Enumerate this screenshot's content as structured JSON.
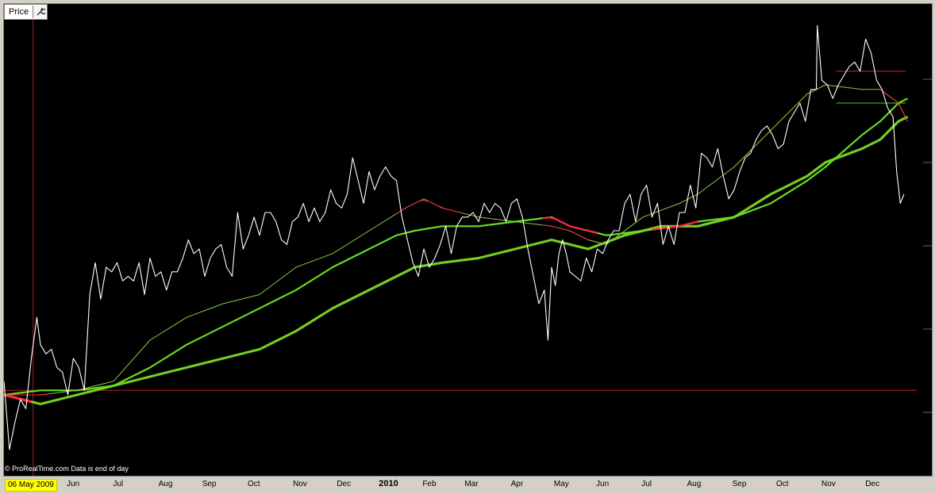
{
  "window": {
    "tab_label": "Price",
    "settings_icon": "wrench-icon"
  },
  "credit": "© ProRealTime.com  Data is end of day",
  "cursor_date": "06 May 2009",
  "colors": {
    "background": "#000000",
    "price": "#ffffff",
    "ma_up": "#66dd22",
    "ma_down": "#ff2244",
    "ref_line": "#aa2222",
    "panel": "#d4d0c8"
  },
  "chart_data": {
    "type": "line",
    "title": "",
    "xlabel": "",
    "ylabel": "",
    "y_labels_visible": false,
    "ylim": [
      0,
      100
    ],
    "grid": false,
    "x_tick_labels": [
      "Jun",
      "Jul",
      "Aug",
      "Sep",
      "Oct",
      "Nov",
      "Dec",
      "2010",
      "Feb",
      "Mar",
      "Apr",
      "May",
      "Jun",
      "Jul",
      "Aug",
      "Sep",
      "Oct",
      "Nov",
      "Dec"
    ],
    "x_tick_bold": [
      false,
      false,
      false,
      false,
      false,
      false,
      false,
      true,
      false,
      false,
      false,
      false,
      false,
      false,
      false,
      false,
      false,
      false,
      false
    ],
    "x_tick_pos": [
      0.0757,
      0.1264,
      0.1762,
      0.2241,
      0.2739,
      0.3236,
      0.3716,
      0.4176,
      0.4655,
      0.5116,
      0.5623,
      0.6094,
      0.6557,
      0.7054,
      0.7552,
      0.8049,
      0.8529,
      0.9026,
      0.9506
    ],
    "series": [
      {
        "role": "price",
        "x": [
          0.0,
          0.006,
          0.012,
          0.018,
          0.024,
          0.03,
          0.036,
          0.04,
          0.046,
          0.052,
          0.058,
          0.064,
          0.07,
          0.076,
          0.082,
          0.088,
          0.094,
          0.1,
          0.106,
          0.112,
          0.118,
          0.124,
          0.13,
          0.136,
          0.142,
          0.148,
          0.154,
          0.16,
          0.166,
          0.172,
          0.178,
          0.184,
          0.19,
          0.196,
          0.202,
          0.208,
          0.214,
          0.22,
          0.226,
          0.232,
          0.238,
          0.244,
          0.25,
          0.256,
          0.262,
          0.268,
          0.274,
          0.28,
          0.286,
          0.292,
          0.298,
          0.304,
          0.31,
          0.316,
          0.322,
          0.328,
          0.334,
          0.34,
          0.346,
          0.352,
          0.358,
          0.364,
          0.37,
          0.376,
          0.382,
          0.388,
          0.394,
          0.4,
          0.406,
          0.412,
          0.418,
          0.424,
          0.43,
          0.436,
          0.442,
          0.448,
          0.454,
          0.46,
          0.466,
          0.472,
          0.478,
          0.484,
          0.49,
          0.496,
          0.502,
          0.508,
          0.514,
          0.52,
          0.526,
          0.532,
          0.538,
          0.544,
          0.55,
          0.556,
          0.562,
          0.568,
          0.574,
          0.58,
          0.586,
          0.592,
          0.596,
          0.6,
          0.604,
          0.608,
          0.612,
          0.616,
          0.62,
          0.626,
          0.632,
          0.638,
          0.644,
          0.65,
          0.656,
          0.662,
          0.668,
          0.674,
          0.68,
          0.686,
          0.692,
          0.698,
          0.704,
          0.71,
          0.716,
          0.722,
          0.728,
          0.734,
          0.74,
          0.746,
          0.752,
          0.758,
          0.764,
          0.77,
          0.776,
          0.782,
          0.788,
          0.794,
          0.8,
          0.806,
          0.812,
          0.818,
          0.824,
          0.83,
          0.836,
          0.842,
          0.848,
          0.854,
          0.86,
          0.866,
          0.872,
          0.878,
          0.884,
          0.89,
          0.896,
          0.902,
          0.908,
          0.914,
          0.92,
          0.926,
          0.932,
          0.938,
          0.944,
          0.95,
          0.956,
          0.962,
          0.968,
          0.974,
          0.978,
          0.982,
          0.986
        ],
        "y": [
          19,
          4,
          10,
          15,
          13,
          24,
          33,
          27,
          25,
          26,
          22,
          21,
          16,
          24,
          22,
          17,
          38,
          45,
          37,
          44,
          43,
          45,
          41,
          42,
          41,
          45,
          38,
          46,
          42,
          43,
          39,
          43,
          43,
          46,
          50,
          47,
          48,
          42,
          46,
          48,
          49,
          44,
          42,
          56,
          48,
          51,
          55,
          51,
          56,
          56,
          54,
          50,
          49,
          54,
          55,
          58,
          54,
          57,
          54,
          56,
          61,
          58,
          57,
          60,
          68,
          63,
          58,
          65,
          61,
          64,
          66,
          64,
          63,
          55,
          50,
          45,
          42,
          48,
          44,
          46,
          49,
          53,
          47,
          53,
          55,
          55,
          56,
          54,
          58,
          56,
          58,
          57,
          54,
          58,
          59,
          55,
          48,
          42,
          36,
          39,
          28,
          44,
          40,
          47,
          50,
          47,
          43,
          42,
          41,
          46,
          43,
          48,
          47,
          50,
          52,
          52,
          58,
          60,
          54,
          60,
          62,
          55,
          58,
          49,
          53,
          49,
          56,
          56,
          62,
          57,
          69,
          68,
          66,
          70,
          64,
          59,
          61,
          65,
          68,
          69,
          72,
          74,
          75,
          73,
          70,
          71,
          76,
          78,
          80,
          76,
          83,
          83,
          85,
          84,
          81,
          84,
          86,
          88,
          89,
          87,
          94,
          91,
          85,
          83,
          79,
          77,
          65,
          58,
          60
        ],
        "tip": {
          "x": 0.891,
          "y": 97
        }
      },
      {
        "role": "ma_fast",
        "x": [
          0.0,
          0.04,
          0.08,
          0.12,
          0.16,
          0.2,
          0.24,
          0.28,
          0.32,
          0.36,
          0.4,
          0.44,
          0.46,
          0.48,
          0.52,
          0.56,
          0.6,
          0.62,
          0.64,
          0.66,
          0.7,
          0.74,
          0.76,
          0.8,
          0.84,
          0.88,
          0.9,
          0.94,
          0.96,
          0.98,
          0.99
        ],
        "y": [
          16,
          16,
          17,
          19,
          28,
          33,
          36,
          38,
          44,
          47,
          52,
          57,
          59,
          57,
          55,
          54,
          53,
          52,
          50,
          49,
          55,
          58,
          60,
          66,
          74,
          82,
          84,
          83,
          83,
          80,
          76
        ]
      },
      {
        "role": "ma_medium",
        "x": [
          0.0,
          0.04,
          0.08,
          0.12,
          0.16,
          0.2,
          0.24,
          0.28,
          0.32,
          0.36,
          0.4,
          0.43,
          0.45,
          0.48,
          0.52,
          0.56,
          0.6,
          0.62,
          0.64,
          0.66,
          0.7,
          0.74,
          0.76,
          0.8,
          0.84,
          0.88,
          0.9,
          0.94,
          0.96,
          0.98,
          0.99
        ],
        "y": [
          16,
          17,
          17,
          18,
          22,
          27,
          31,
          35,
          39,
          44,
          48,
          51,
          52,
          53,
          53,
          54,
          55,
          53,
          52,
          51,
          52,
          53,
          54,
          55,
          58,
          63,
          66,
          73,
          76,
          80,
          81
        ]
      },
      {
        "role": "ma_slow",
        "x": [
          0.0,
          0.04,
          0.08,
          0.12,
          0.16,
          0.2,
          0.24,
          0.28,
          0.32,
          0.36,
          0.4,
          0.44,
          0.45,
          0.48,
          0.52,
          0.56,
          0.6,
          0.62,
          0.64,
          0.68,
          0.72,
          0.76,
          0.8,
          0.84,
          0.88,
          0.9,
          0.94,
          0.96,
          0.98,
          0.99
        ],
        "y": [
          16,
          14,
          16,
          18,
          20,
          22,
          24,
          26,
          30,
          35,
          39,
          43,
          44,
          45,
          46,
          48,
          50,
          49,
          48,
          51,
          53,
          53,
          55,
          60,
          64,
          67,
          70,
          72,
          76,
          77
        ]
      }
    ],
    "reference_lines": [
      {
        "y": 17,
        "x_from": 0.0,
        "x_to": 1.0,
        "color": "#aa2222"
      },
      {
        "y": 87,
        "x_from": 0.912,
        "x_to": 0.988,
        "color": "#cc2233"
      },
      {
        "y": 80,
        "x_from": 0.912,
        "x_to": 0.988,
        "color": "#44cc22"
      }
    ],
    "cursor_x": 0.032,
    "down_segments": [
      {
        "series": 1,
        "x_from": 0.0,
        "x_to": 0.05
      },
      {
        "series": 1,
        "x_from": 0.43,
        "x_to": 0.5
      },
      {
        "series": 1,
        "x_from": 0.59,
        "x_to": 0.64
      },
      {
        "series": 1,
        "x_from": 0.96,
        "x_to": 0.99
      },
      {
        "series": 2,
        "x_from": 0.59,
        "x_to": 0.65
      },
      {
        "series": 2,
        "x_from": 0.71,
        "x_to": 0.76
      },
      {
        "series": 3,
        "x_from": 0.0,
        "x_to": 0.03
      }
    ]
  }
}
